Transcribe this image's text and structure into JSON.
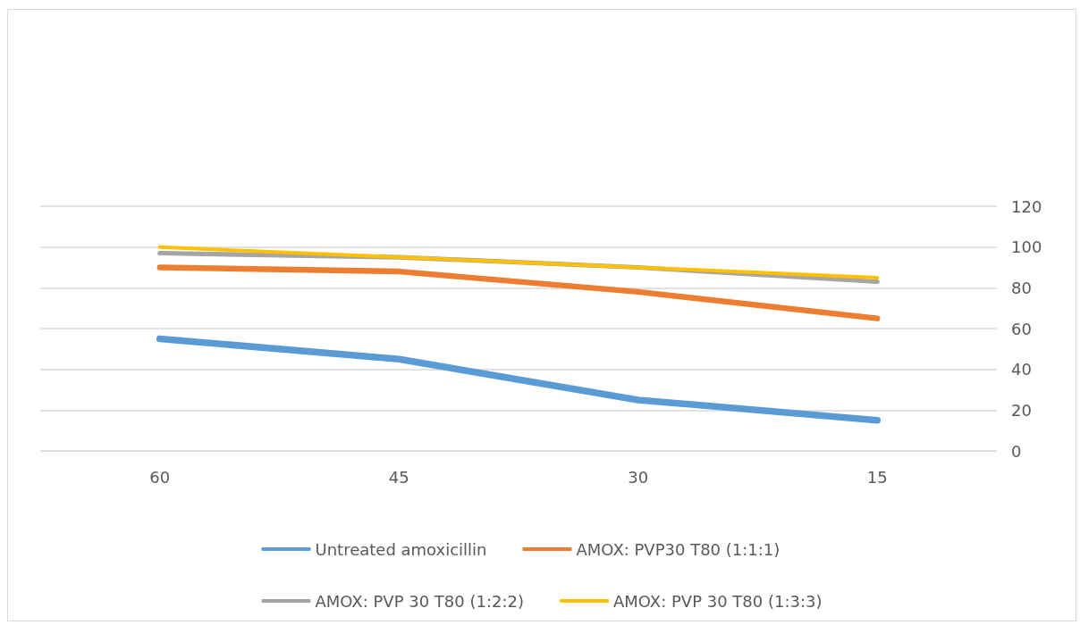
{
  "chart_data": {
    "type": "line",
    "categories": [
      "60",
      "45",
      "30",
      "15"
    ],
    "series": [
      {
        "name": "Untreated amoxicillin",
        "color": "#5b9bd5",
        "values": [
          55,
          45,
          25,
          15
        ]
      },
      {
        "name": "AMOX: PVP30 T80 (1:1:1)",
        "color": "#ed7d31",
        "values": [
          90,
          88,
          78,
          65
        ]
      },
      {
        "name": "AMOX: PVP 30 T80 (1:2:2)",
        "color": "#a5a5a5",
        "values": [
          97,
          95,
          90,
          83
        ]
      },
      {
        "name": "AMOX: PVP 30 T80 (1:3:3)",
        "color": "#ffc000",
        "values": [
          100,
          95,
          90,
          85
        ]
      }
    ],
    "ylim": [
      0,
      120
    ],
    "yticks": [
      0,
      20,
      40,
      60,
      80,
      100,
      120
    ],
    "grid": "y",
    "legend": "bottom",
    "marker": "none",
    "line_style": "solid"
  }
}
